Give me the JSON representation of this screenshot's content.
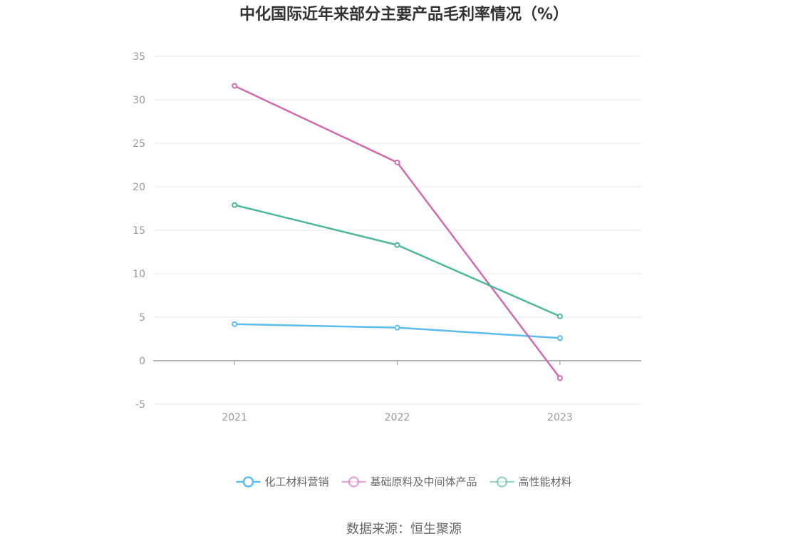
{
  "chart_data": {
    "type": "line",
    "title": "中化国际近年来部分主要产品毛利率情况（%）",
    "categories": [
      "2021",
      "2022",
      "2023"
    ],
    "ylim": [
      -5,
      35
    ],
    "yticks": [
      -5,
      0,
      5,
      10,
      15,
      20,
      25,
      30,
      35
    ],
    "grid": true,
    "legend_position": "bottom",
    "series": [
      {
        "name": "化工材料营销",
        "color": "#5bbcf0",
        "values": [
          4.2,
          3.8,
          2.6
        ]
      },
      {
        "name": "基础原料及中间体产品",
        "color": "#d16aae",
        "values": [
          31.6,
          22.8,
          -2.0
        ]
      },
      {
        "name": "高性能材料",
        "color": "#4db89c",
        "values": [
          17.9,
          13.3,
          5.1
        ]
      }
    ]
  },
  "source": "数据来源：恒生聚源"
}
